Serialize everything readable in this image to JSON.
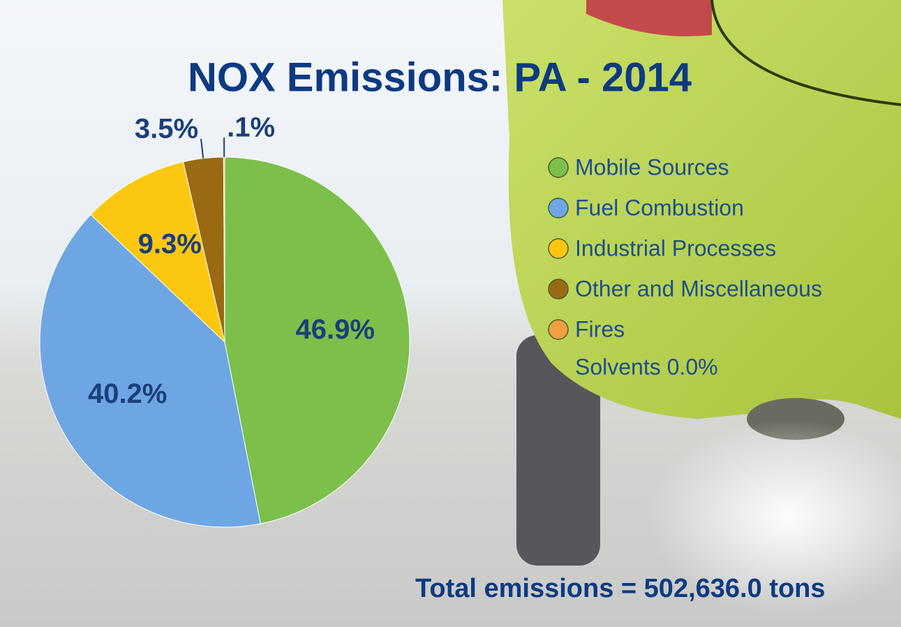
{
  "chart_data": {
    "type": "pie",
    "title": "NOX Emissions: PA - 2014",
    "categories": [
      "Mobile Sources",
      "Fuel Combustion",
      "Industrial Processes",
      "Other and Miscellaneous",
      "Fires"
    ],
    "values": [
      46.9,
      40.2,
      9.3,
      3.5,
      0.1
    ],
    "value_labels": [
      "46.9%",
      "40.2%",
      "9.3%",
      "3.5%",
      ".1%"
    ],
    "colors": [
      "#7cc04b",
      "#6ea6e4",
      "#fcc710",
      "#9a6a12",
      "#f0a040"
    ],
    "legend_note": "Solvents 0.0%",
    "annotation": "Total emissions = 502,636.0 tons"
  }
}
